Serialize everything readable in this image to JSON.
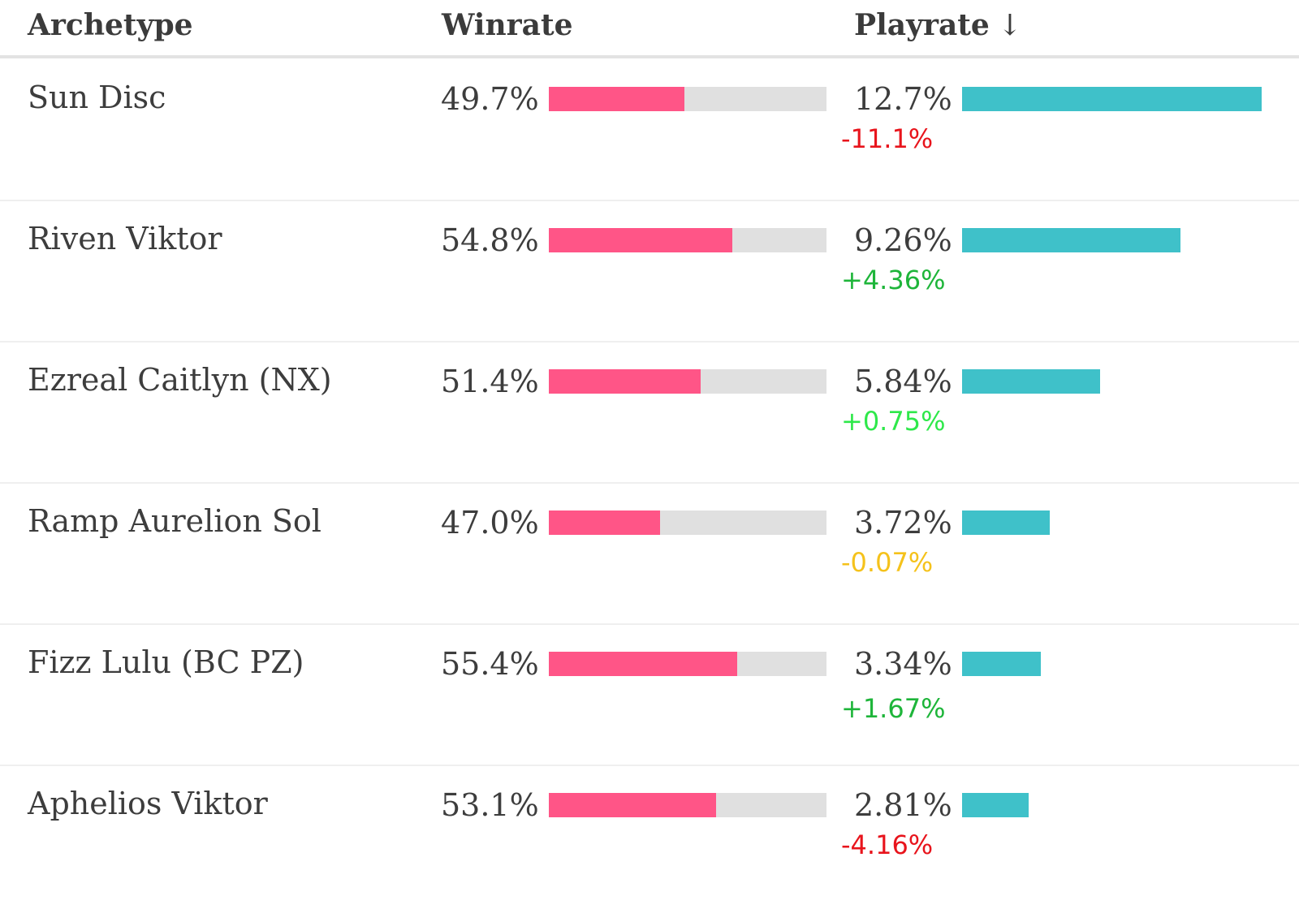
{
  "header": {
    "archetype": "Archetype",
    "winrate": "Winrate",
    "playrate": "Playrate",
    "sort_arrow": "↓"
  },
  "colors": {
    "winrate_bar": "#ff5587",
    "winrate_track": "#e0e0e0",
    "playrate_bar": "#3fc1c9",
    "delta_negative": "#e8141c",
    "delta_positive": "#1eb53a",
    "delta_positive_bright": "#2ee84a",
    "delta_neutral": "#f5c21b"
  },
  "rows": [
    {
      "archetype": "Sun Disc",
      "winrate": "49.7%",
      "winrate_value": 49.7,
      "playrate": "12.7%",
      "playrate_value": 12.7,
      "delta": "-11.1%",
      "delta_color": "#e8141c"
    },
    {
      "archetype": "Riven Viktor",
      "winrate": "54.8%",
      "winrate_value": 54.8,
      "playrate": "9.26%",
      "playrate_value": 9.26,
      "delta": "+4.36%",
      "delta_color": "#1eb53a"
    },
    {
      "archetype": "Ezreal Caitlyn (NX)",
      "winrate": "51.4%",
      "winrate_value": 51.4,
      "playrate": "5.84%",
      "playrate_value": 5.84,
      "delta": "+0.75%",
      "delta_color": "#2ee84a"
    },
    {
      "archetype": "Ramp Aurelion Sol",
      "winrate": "47.0%",
      "winrate_value": 47.0,
      "playrate": "3.72%",
      "playrate_value": 3.72,
      "delta": "-0.07%",
      "delta_color": "#f5c21b"
    },
    {
      "archetype": "Fizz Lulu (BC PZ)",
      "winrate": "55.4%",
      "winrate_value": 55.4,
      "playrate": "3.34%",
      "playrate_value": 3.34,
      "delta": "+1.67%",
      "delta_color": "#1eb53a"
    },
    {
      "archetype": "Aphelios Viktor",
      "winrate": "53.1%",
      "winrate_value": 53.1,
      "playrate": "2.81%",
      "playrate_value": 2.81,
      "delta": "-4.16%",
      "delta_color": "#e8141c"
    }
  ]
}
